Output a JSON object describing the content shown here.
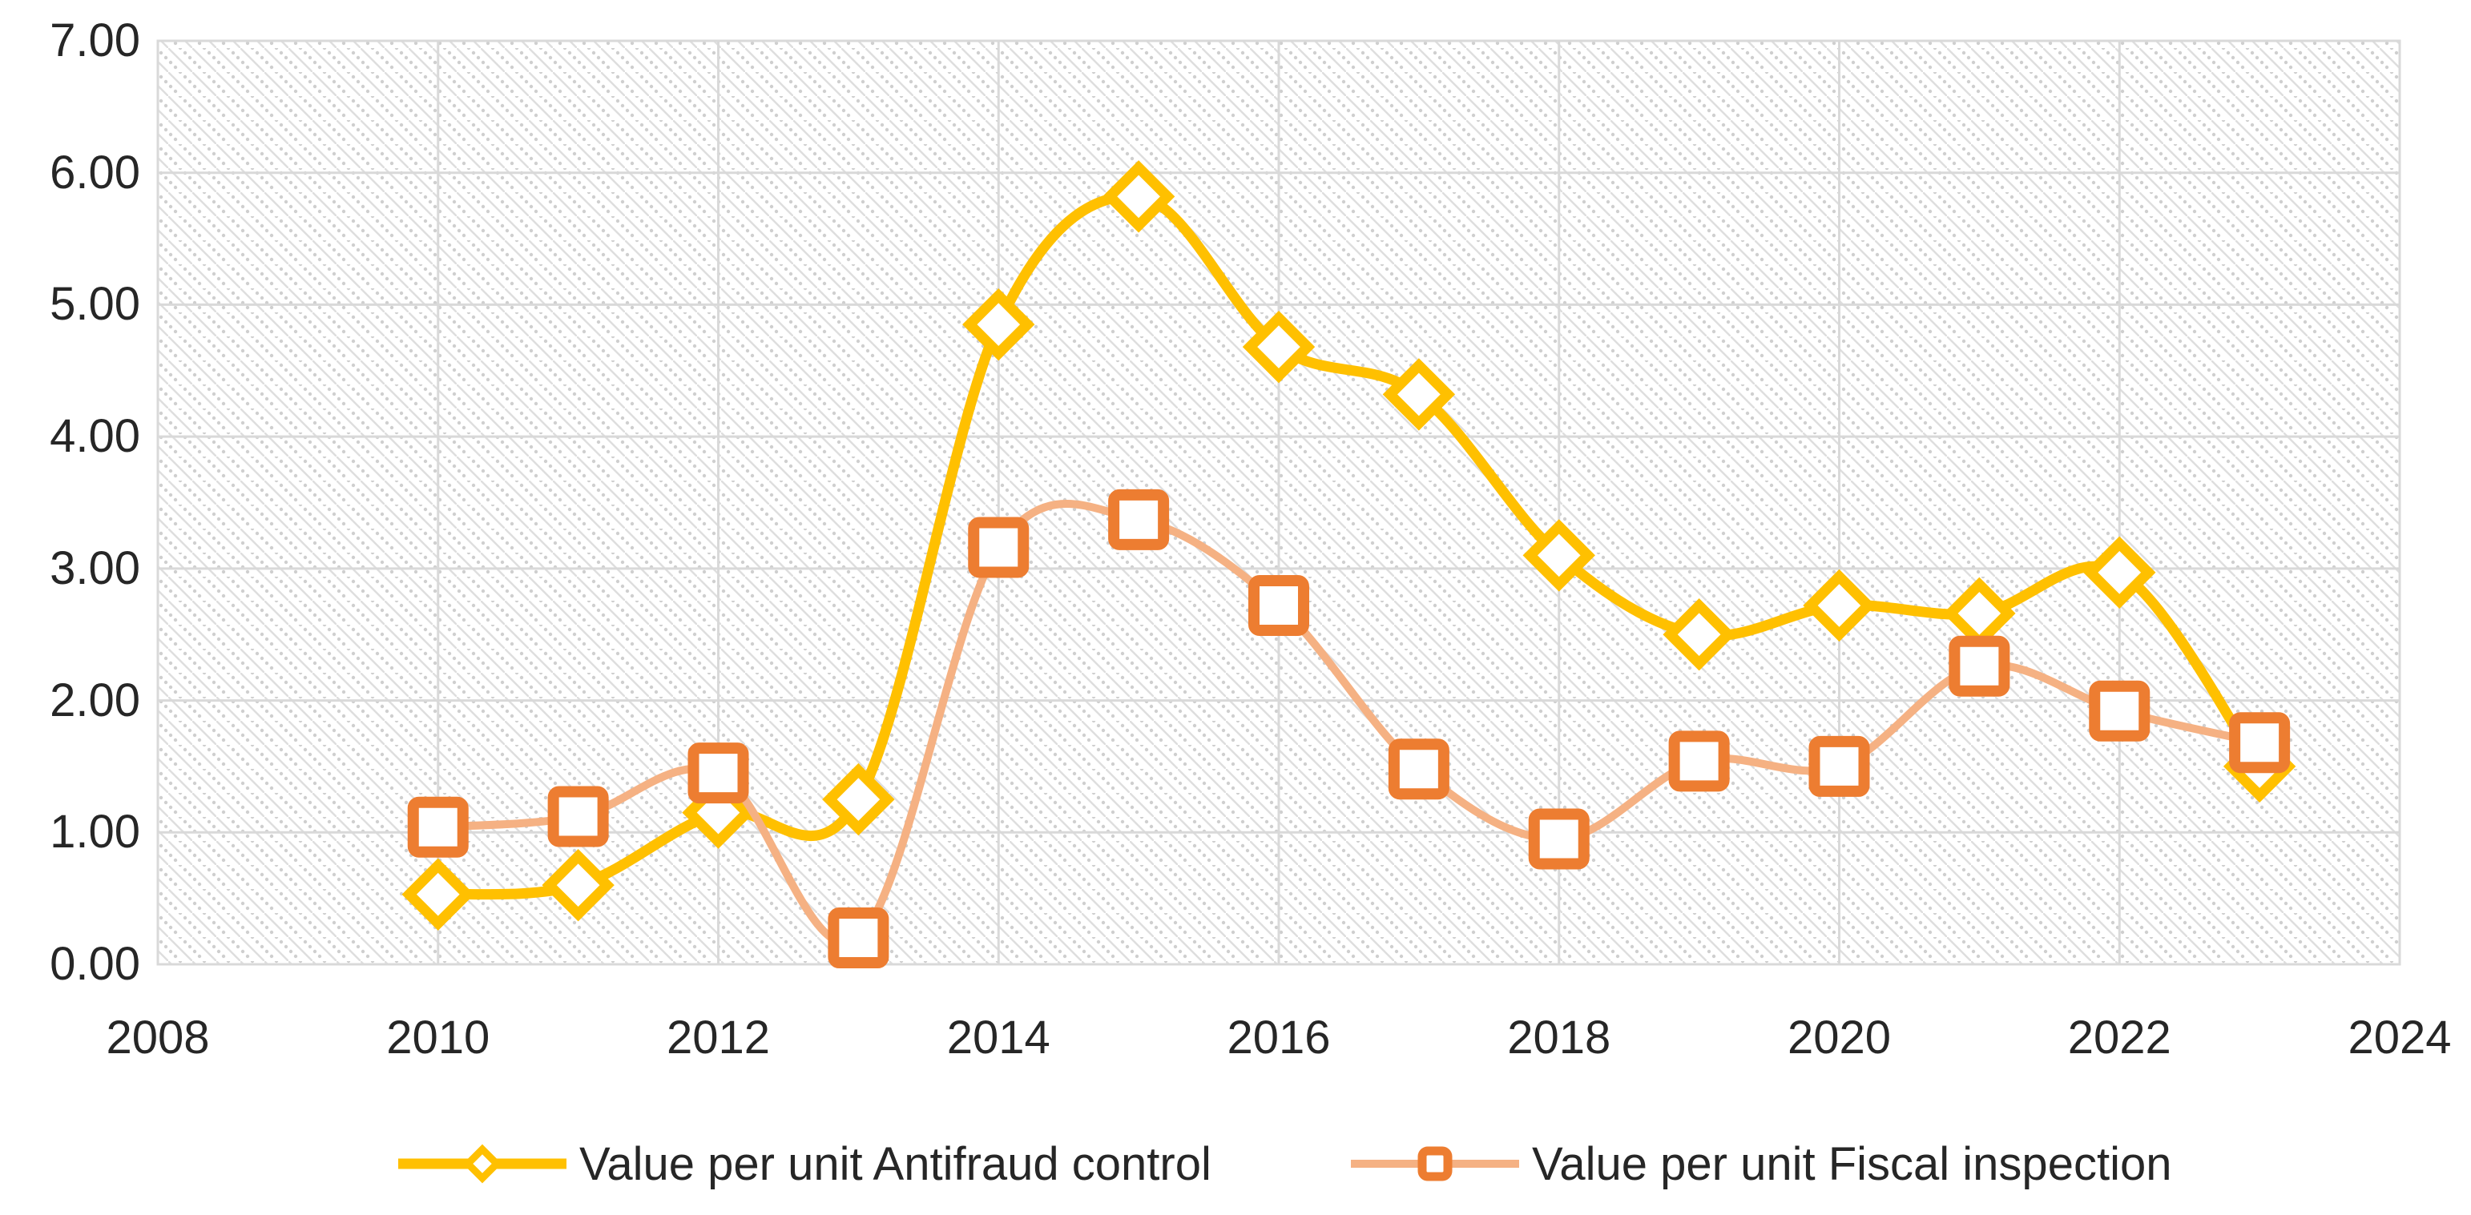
{
  "chart_data": {
    "type": "line",
    "title": "",
    "xlabel": "",
    "ylabel": "",
    "x": [
      2010,
      2011,
      2012,
      2013,
      2014,
      2015,
      2016,
      2017,
      2018,
      2019,
      2020,
      2021,
      2022,
      2023
    ],
    "series": [
      {
        "name": "Value per unit Antifraud control",
        "marker": "diamond",
        "marker_color": "#FFC000",
        "line_color": "#FFC000",
        "values": [
          0.53,
          0.6,
          1.15,
          1.25,
          4.85,
          5.82,
          4.68,
          4.32,
          3.1,
          2.5,
          2.72,
          2.66,
          2.97,
          1.5
        ]
      },
      {
        "name": "Value per unit Fiscal inspection",
        "marker": "square",
        "marker_color": "#ED7D31",
        "line_color": "#F5B183",
        "values": [
          1.04,
          1.12,
          1.45,
          0.2,
          3.16,
          3.37,
          2.72,
          1.48,
          0.95,
          1.54,
          1.5,
          2.26,
          1.92,
          1.68
        ]
      }
    ],
    "xlim": [
      2008,
      2024
    ],
    "ylim": [
      0,
      7
    ],
    "xticks": [
      "2008",
      "2010",
      "2012",
      "2014",
      "2016",
      "2018",
      "2020",
      "2022",
      "2024"
    ],
    "yticks": [
      "0.00",
      "1.00",
      "2.00",
      "3.00",
      "4.00",
      "5.00",
      "6.00",
      "7.00"
    ],
    "grid": true,
    "smooth_lines": true,
    "plot_background": "diagonal-hatch-pattern",
    "legend_position": "bottom"
  },
  "legend": {
    "items": [
      {
        "label": "Value per unit Antifraud control"
      },
      {
        "label": "Value per unit Fiscal inspection"
      }
    ]
  },
  "colors": {
    "antifraud_line": "#FFC000",
    "fiscal_line": "#F5B183",
    "fiscal_marker": "#ED7D31",
    "gridline": "#D9D9D9",
    "hatch_line": "#DEDEDE",
    "hatch_dot": "#CFCFCF",
    "text": "#262626",
    "marker_fill": "#FFFFFF"
  }
}
